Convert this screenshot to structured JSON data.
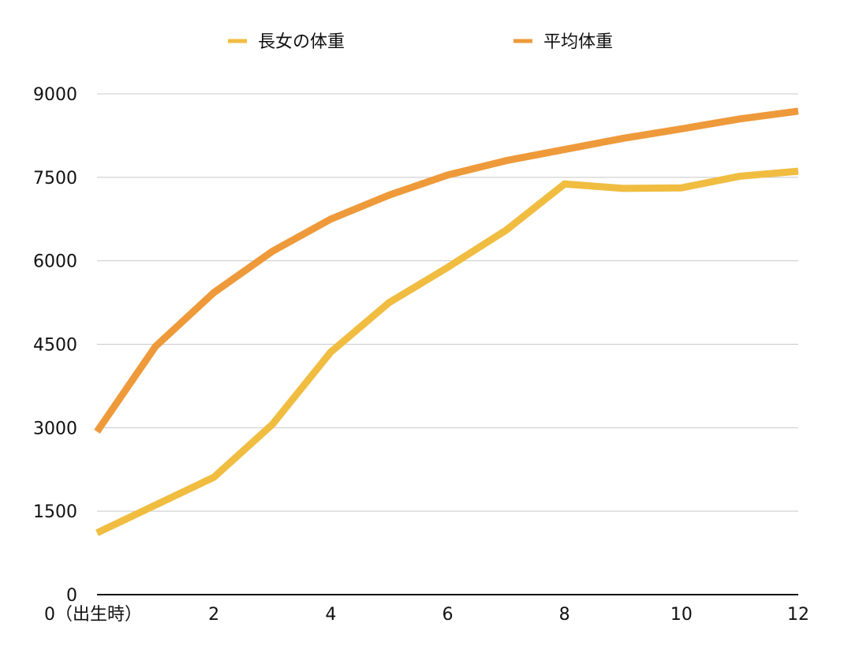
{
  "chart_data": {
    "type": "line",
    "x": [
      0,
      1,
      2,
      3,
      4,
      5,
      6,
      7,
      8,
      9,
      10,
      11,
      12
    ],
    "series": [
      {
        "name": "長女の体重",
        "color": "#f0bd41",
        "values": [
          1110,
          1610,
          2110,
          3060,
          4360,
          5250,
          5880,
          6550,
          7380,
          7300,
          7310,
          7520,
          7610
        ]
      },
      {
        "name": "平均体重",
        "color": "#ee9a3a",
        "values": [
          2930,
          4460,
          5430,
          6170,
          6750,
          7180,
          7540,
          7800,
          8000,
          8200,
          8370,
          8550,
          8690
        ]
      }
    ],
    "xlim": [
      0,
      12
    ],
    "ylim": [
      0,
      9000
    ],
    "y_ticks": [
      "0",
      "1500",
      "3000",
      "4500",
      "6000",
      "7500",
      "9000"
    ],
    "x_ticks": [
      {
        "x": 0,
        "label": "0（出生時）"
      },
      {
        "x": 2,
        "label": "2"
      },
      {
        "x": 4,
        "label": "4"
      },
      {
        "x": 6,
        "label": "6"
      },
      {
        "x": 8,
        "label": "8"
      },
      {
        "x": 10,
        "label": "10"
      },
      {
        "x": 12,
        "label": "12"
      }
    ],
    "title": "",
    "xlabel": "",
    "ylabel": "",
    "grid": true,
    "legend": "top-center"
  }
}
